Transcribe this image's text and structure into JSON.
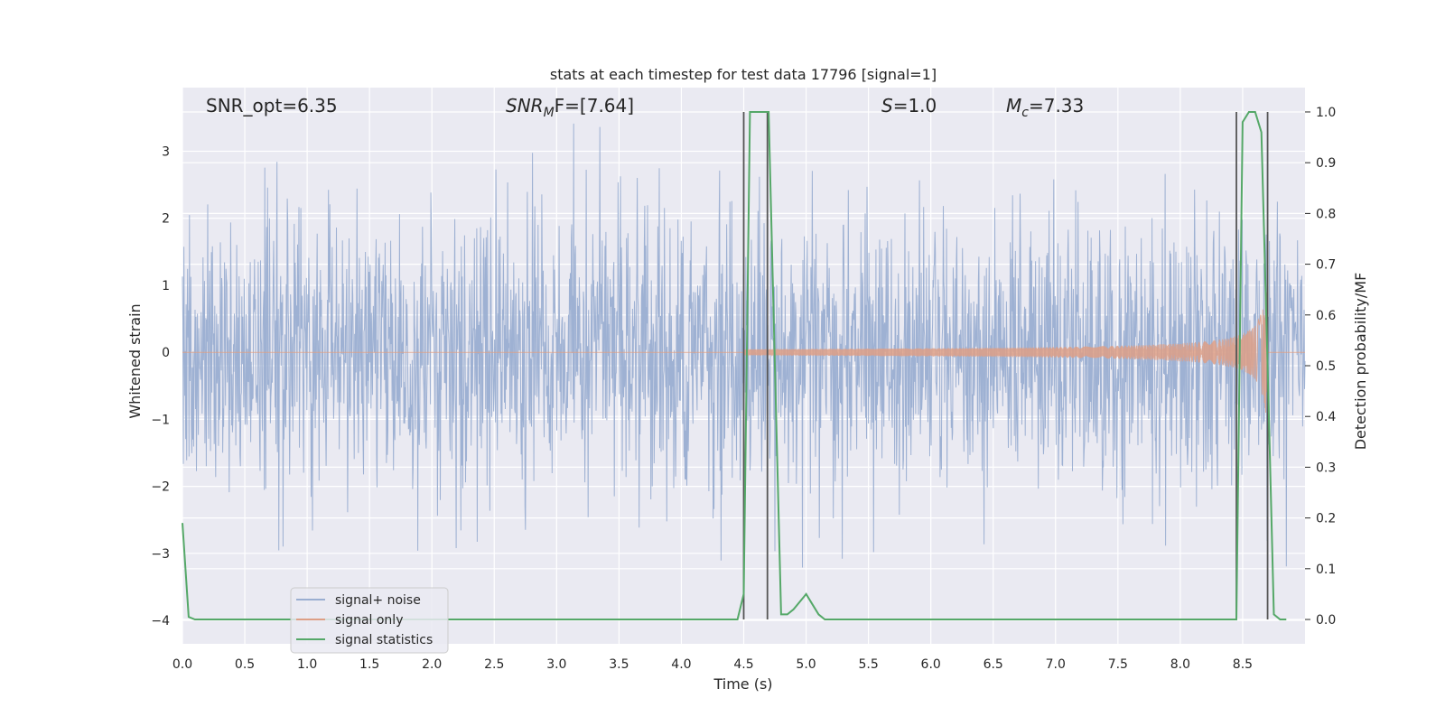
{
  "chart_data": {
    "type": "line",
    "title": "stats at each timestep for test data 17796 [signal=1]",
    "xlabel": "Time (s)",
    "ylabel_left": "Whitened strain",
    "ylabel_right": "Detection probability/MF",
    "xlim": [
      0.0,
      9.0
    ],
    "ylim_left": [
      -4.35,
      3.95
    ],
    "ylim_right": [
      -0.048,
      1.048
    ],
    "xticks": [
      "0.0",
      "0.5",
      "1.0",
      "1.5",
      "2.0",
      "2.5",
      "3.0",
      "3.5",
      "4.0",
      "4.5",
      "5.0",
      "5.5",
      "6.0",
      "6.5",
      "7.0",
      "7.5",
      "8.0",
      "8.5"
    ],
    "yticks_left": [
      "3",
      "2",
      "1",
      "0",
      "−1",
      "−2",
      "−3",
      "−4"
    ],
    "yticks_right": [
      "1.0",
      "0.9",
      "0.8",
      "0.7",
      "0.6",
      "0.5",
      "0.4",
      "0.3",
      "0.2",
      "0.1",
      "0.0"
    ],
    "grid": true,
    "legend_position": "lower-left",
    "annotations": {
      "snr_opt": "SNR_opt=6.35",
      "snr_mf_label": "SNR",
      "snr_mf_sub": "M",
      "snr_mf_rest": "F=[7.64]",
      "s_label": "S",
      "s_rest": "=1.0",
      "mc_label": "M",
      "mc_sub": "c",
      "mc_rest": "=7.33"
    },
    "series": [
      {
        "name": "signal+ noise",
        "color": "#9aaed1",
        "description_range": [
          -3.7,
          3.5
        ],
        "noise_std": 1.0
      },
      {
        "name": "signal only",
        "color": "#dd9f86",
        "chirp_start": 4.5,
        "chirp_end": 8.7,
        "peak_amplitude": 0.9
      },
      {
        "name": "signal statistics",
        "color": "#55a868",
        "x": [
          0.0,
          0.05,
          0.1,
          4.45,
          4.5,
          4.55,
          4.6,
          4.7,
          4.75,
          4.8,
          4.85,
          4.9,
          5.0,
          5.05,
          5.1,
          5.15,
          5.2,
          8.45,
          8.5,
          8.55,
          8.6,
          8.65,
          8.7,
          8.75,
          8.8,
          8.85
        ],
        "y": [
          0.19,
          0.005,
          0.0,
          0.0,
          0.05,
          1.0,
          1.0,
          1.0,
          0.5,
          0.01,
          0.01,
          0.02,
          0.05,
          0.03,
          0.01,
          0.0,
          0.0,
          0.0,
          0.98,
          1.0,
          1.0,
          0.96,
          0.5,
          0.01,
          0.0,
          0.0
        ]
      }
    ],
    "vertical_markers": [
      {
        "x": 4.5,
        "y_right": [
          0.0,
          1.0
        ]
      },
      {
        "x": 4.69,
        "y_right": [
          0.0,
          1.0
        ]
      },
      {
        "x": 8.45,
        "y_right": [
          0.0,
          1.0
        ]
      },
      {
        "x": 8.7,
        "y_right": [
          0.0,
          1.0
        ]
      }
    ],
    "colors": {
      "background": "#eaeaf2",
      "grid": "#ffffff",
      "marker": "#555555"
    }
  }
}
